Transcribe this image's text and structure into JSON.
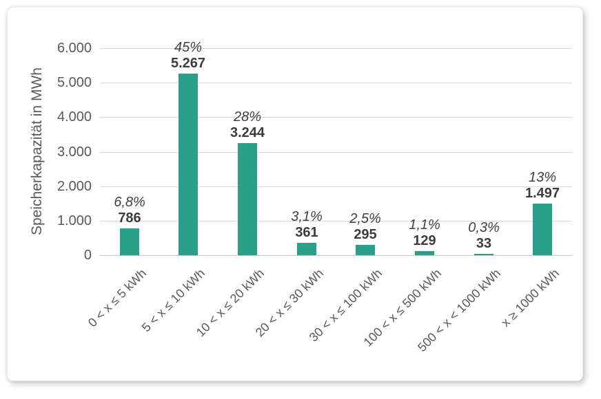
{
  "chart_data": {
    "type": "bar",
    "title": "",
    "ylabel": "Speicherkapazität in MWh",
    "xlabel": "",
    "categories": [
      "0 < x ≤ 5 kWh",
      "5 < x ≤ 10 kWh",
      "10 < x ≤ 20 kWh",
      "20 < x ≤ 30 kWh",
      "30 < x ≤ 100 kWh",
      "100 < x ≤ 500 kWh",
      "500 < x < 1000 kWh",
      "x ≥ 1000 kWh"
    ],
    "values": [
      786,
      5267,
      3244,
      361,
      295,
      129,
      33,
      1497
    ],
    "value_labels": [
      "786",
      "5.267",
      "3.244",
      "361",
      "295",
      "129",
      "33",
      "1.497"
    ],
    "percent_labels": [
      "6,8%",
      "45%",
      "28%",
      "3,1%",
      "2,5%",
      "1,1%",
      "0,3%",
      "13%"
    ],
    "y_tick_labels": [
      "0",
      "1.000",
      "2.000",
      "3.000",
      "4.000",
      "5.000",
      "6.000"
    ],
    "y_tick_values": [
      0,
      1000,
      2000,
      3000,
      4000,
      5000,
      6000
    ],
    "ylim": [
      0,
      6000
    ],
    "grid": true,
    "legend": null,
    "colors": {
      "bar": "#2aa08a",
      "grid": "#d8d8d8",
      "axis_line": "#c9c9c9",
      "tick_text": "#595959",
      "axis_title_text": "#595959",
      "value_text": "#3c3c3c",
      "percent_text": "#404040"
    }
  }
}
